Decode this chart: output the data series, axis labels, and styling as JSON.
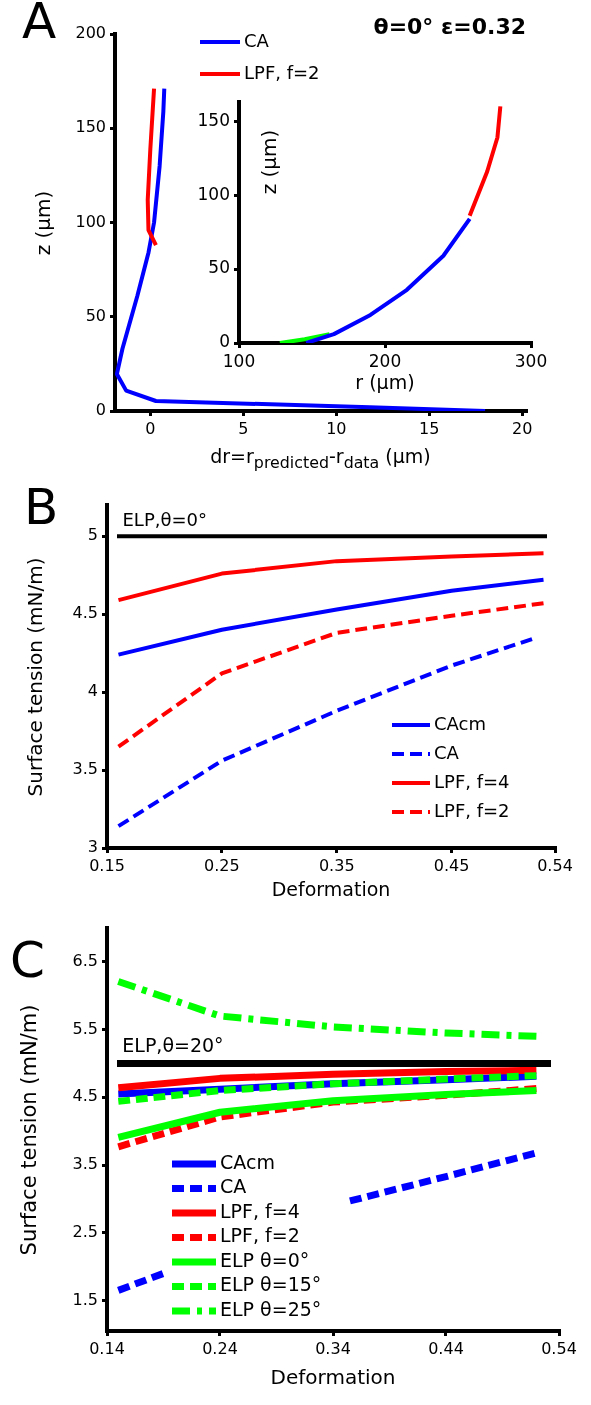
{
  "chart_data": [
    {
      "type": "line",
      "title": "θ=0° ε=0.32",
      "annotations": [
        "A"
      ],
      "xlabel": "dr=r$_{predicted}$-r$_{data}$ (μm)",
      "ylabel": "z (μm)",
      "xlim": [
        -1.9,
        20.2
      ],
      "xticks": [
        0,
        5,
        10,
        15,
        20
      ],
      "ylim": [
        0,
        200
      ],
      "yticks": [
        0,
        50,
        100,
        150,
        200
      ],
      "legend": "top left",
      "series": [
        {
          "name": "CA",
          "color": "#0000ff",
          "x": [
            18.0,
            11.8,
            0.3,
            -1.3,
            -1.8,
            -1.5,
            -0.7,
            -0.1,
            0.2,
            0.5,
            0.7,
            0.75
          ],
          "values": [
            0,
            2,
            5.3,
            10.8,
            19.6,
            33,
            61,
            84,
            100,
            130,
            159,
            171
          ]
        },
        {
          "name": "LPF, f=2",
          "color": "#ff0000",
          "x": [
            0.3,
            -0.1,
            -0.14,
            0,
            0.2
          ],
          "values": [
            88,
            96,
            112,
            139,
            171
          ]
        }
      ]
    },
    {
      "type": "line",
      "xlabel": "r (μm)",
      "ylabel": "z (μm)",
      "xlim": [
        100,
        300
      ],
      "xticks": [
        100,
        200,
        300
      ],
      "ylim": [
        0,
        163
      ],
      "yticks": [
        0,
        50,
        100,
        150
      ],
      "series": [
        {
          "color": "#00ff00",
          "x": [
            128,
            145,
            162
          ],
          "values": [
            0,
            2.5,
            6
          ]
        },
        {
          "color": "#0000ff",
          "x": [
            146,
            165,
            190,
            215,
            240,
            258
          ],
          "values": [
            0,
            6,
            19,
            36,
            59,
            84
          ]
        },
        {
          "color": "#ff0000",
          "x": [
            258,
            270,
            277,
            279
          ],
          "values": [
            86,
            116,
            139,
            160
          ]
        }
      ]
    },
    {
      "type": "line",
      "annotations": [
        "B",
        {
          "text": "ELP,θ=0°",
          "x": 0.16,
          "y": 5
        }
      ],
      "xlabel": "Deformation",
      "ylabel": "Surface tension (mN/m)",
      "x": [
        0.16,
        0.25,
        0.35,
        0.45,
        0.53
      ],
      "xlim": [
        0.15,
        0.54
      ],
      "xticks": [
        0.15,
        0.25,
        0.35,
        0.45,
        0.54
      ],
      "ylim": [
        3,
        5.2
      ],
      "yticks": [
        3,
        3.5,
        4,
        4.5,
        5
      ],
      "legend": "bottom right",
      "ref_lines": [
        {
          "axis": "y",
          "value": 5,
          "color": "#000000"
        }
      ],
      "series": [
        {
          "name": "CAcm",
          "color": "#0000ff",
          "line_style": "solid",
          "values": [
            4.24,
            4.4,
            4.53,
            4.65,
            4.72
          ]
        },
        {
          "name": "CA",
          "color": "#0000ff",
          "line_style": "dashed",
          "x": [
            0.16,
            0.25,
            0.35,
            0.45,
            0.52
          ],
          "values": [
            3.14,
            3.56,
            3.88,
            4.17,
            4.34
          ]
        },
        {
          "name": "LPF, f=4",
          "color": "#ff0000",
          "line_style": "solid",
          "values": [
            4.59,
            4.76,
            4.84,
            4.87,
            4.89
          ]
        },
        {
          "name": "LPF, f=2",
          "color": "#ff0000",
          "line_style": "dashed",
          "values": [
            3.65,
            4.12,
            4.38,
            4.49,
            4.57
          ]
        }
      ]
    },
    {
      "type": "line",
      "annotations": [
        "C",
        {
          "text": "ELP,θ=20°",
          "x": 0.15,
          "y": 5
        }
      ],
      "xlabel": "Deformation",
      "ylabel": "Surface tension (mN/m)",
      "x": [
        0.15,
        0.24,
        0.34,
        0.44,
        0.52
      ],
      "xlim": [
        0.14,
        0.54
      ],
      "xticks": [
        0.14,
        0.24,
        0.34,
        0.44,
        0.54
      ],
      "ylim": [
        1.05,
        7
      ],
      "yticks": [
        1.5,
        2.5,
        3.5,
        4.5,
        5.5,
        6.5
      ],
      "legend": "bottom left",
      "ref_lines": [
        {
          "axis": "y",
          "value": 5,
          "color": "#000000"
        }
      ],
      "series": [
        {
          "name": "CAcm",
          "color": "#0000ff",
          "line_style": "solid",
          "values": [
            4.55,
            4.62,
            4.7,
            4.76,
            4.81
          ]
        },
        {
          "name": "CA",
          "color": "#0000ff",
          "line_style": "dashed",
          "x": [
            0.15,
            0.19,
            0.27,
            0.355,
            0.44,
            0.52
          ],
          "values": [
            1.65,
            1.9,
            null,
            2.97,
            3.33,
            3.68
          ]
        },
        {
          "name": "LPF, f=4",
          "color": "#ff0000",
          "line_style": "solid",
          "values": [
            4.64,
            4.78,
            4.84,
            4.88,
            4.9
          ]
        },
        {
          "name": "LPF, f=2",
          "color": "#ff0000",
          "line_style": "dashed",
          "values": [
            3.77,
            4.21,
            4.43,
            4.53,
            4.63
          ]
        },
        {
          "name": "ELP θ=0°",
          "color": "#00ff00",
          "line_style": "solid",
          "values": [
            3.91,
            4.28,
            4.45,
            4.54,
            4.6
          ]
        },
        {
          "name": "ELP θ=15°",
          "color": "#00ff00",
          "line_style": "dashed",
          "values": [
            4.44,
            4.6,
            4.7,
            4.77,
            4.82
          ]
        },
        {
          "name": "ELP θ=25°",
          "color": "#00ff00",
          "line_style": "dashdot",
          "values": [
            6.21,
            5.7,
            5.54,
            5.45,
            5.4
          ]
        }
      ]
    }
  ]
}
